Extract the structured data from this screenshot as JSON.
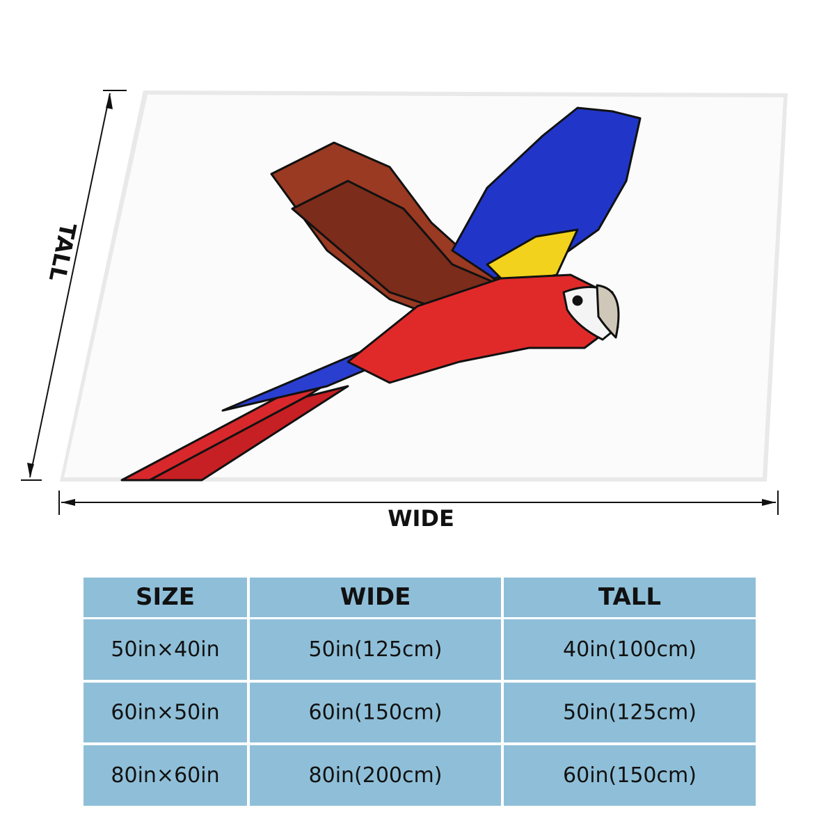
{
  "diagram": {
    "tall_label": "TALL",
    "wide_label": "WIDE"
  },
  "table": {
    "header": [
      "SIZE",
      "WIDE",
      "TALL"
    ],
    "rows": [
      [
        "50in×40in",
        "50in(125cm)",
        "40in(100cm)"
      ],
      [
        "60in×50in",
        "60in(150cm)",
        "50in(125cm)"
      ],
      [
        "80in×60in",
        "80in(200cm)",
        "60in(150cm)"
      ]
    ]
  }
}
